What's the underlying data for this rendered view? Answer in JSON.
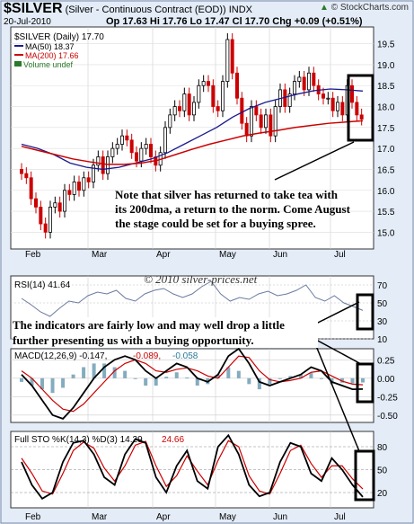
{
  "header": {
    "symbol": "$SILVER",
    "description": "(Silver - Continuous Contract (EOD))",
    "exchange": "INDX",
    "date": "20-Jul-2010",
    "ohlc": "Op 17.63  Hi 17.76  Lo 17.47  Cl 17.70  Chg +0.09 (+0.51%)",
    "watermark": "© StockCharts.com",
    "chg_up_glyph": "▲"
  },
  "legend": {
    "price": "$SILVER (Daily) 17.70",
    "ma50": "MA(50) 18.37",
    "ma200": "MA(200) 17.66",
    "volume": "Volume undef"
  },
  "annotations": {
    "price_note": "Note that silver has returned to take tea with its 200dma, a return to the norm. Come August the stage could be set for a buying spree.",
    "indicator_note": "The indicators are fairly low and may well drop a little further presenting us with a buying opportunity.",
    "copyright": "© 2010 silver-prices.net"
  },
  "panels": {
    "rsi_label": "RSI(14) 41.64",
    "macd_label_a": "MACD(12,26,9) -0.147,",
    "macd_label_b": "-0.089,",
    "macd_label_c": "-0.058",
    "sto_label_a": "Full STO %K(14,3) %D(3) 14.29,",
    "sto_label_b": "24.66"
  },
  "colors": {
    "background": "#e3ecf7",
    "plot": "#ffffff",
    "up_candle": "#000000",
    "down_candle": "#cc0000",
    "ma50": "#1a1a8c",
    "ma200": "#cc0000",
    "rsi_line": "#6a7aa0",
    "histogram": "#6e9eb4"
  },
  "chart_data": [
    {
      "type": "candlestick",
      "title": "$SILVER (Daily)",
      "x_ticks": [
        "Feb",
        "Mar",
        "Apr",
        "May",
        "Jun",
        "Jul"
      ],
      "y_ticks": [
        15.0,
        15.5,
        16.0,
        16.5,
        17.0,
        17.5,
        18.0,
        18.5,
        19.0,
        19.5
      ],
      "ylim": [
        14.6,
        19.9
      ],
      "series": [
        {
          "name": "$SILVER (Daily)",
          "close": [
            16.4,
            16.3,
            15.8,
            15.6,
            15.2,
            15.0,
            15.6,
            15.7,
            15.5,
            16.0,
            15.9,
            16.2,
            16.0,
            16.3,
            16.2,
            16.6,
            16.8,
            16.4,
            16.8,
            17.0,
            17.1,
            17.3,
            17.2,
            16.9,
            16.7,
            17.0,
            17.1,
            16.8,
            16.6,
            16.9,
            17.5,
            17.8,
            18.0,
            17.9,
            18.3,
            17.8,
            18.1,
            18.5,
            18.6,
            18.5,
            18.0,
            17.9,
            18.6,
            19.6,
            18.8,
            18.2,
            17.6,
            17.3,
            18.0,
            17.8,
            17.5,
            17.8,
            17.3,
            18.0,
            18.4,
            18.0,
            18.3,
            18.6,
            18.7,
            18.4,
            18.8,
            18.5,
            18.3,
            18.2,
            18.2,
            17.9,
            18.1,
            17.8,
            18.5,
            18.1,
            17.8,
            17.7
          ]
        },
        {
          "name": "MA(50)",
          "values": [
            17.1,
            17.0,
            16.85,
            16.65,
            16.55,
            16.5,
            16.55,
            16.65,
            16.75,
            16.9,
            17.1,
            17.3,
            17.5,
            17.75,
            17.95,
            18.1,
            18.2,
            18.3,
            18.38,
            18.42,
            18.4,
            18.37
          ]
        },
        {
          "name": "MA(200)",
          "values": [
            17.05,
            16.95,
            16.85,
            16.75,
            16.68,
            16.62,
            16.62,
            16.65,
            16.72,
            16.85,
            16.98,
            17.1,
            17.2,
            17.3,
            17.37,
            17.43,
            17.5,
            17.55,
            17.6,
            17.63,
            17.66
          ]
        }
      ]
    },
    {
      "type": "line",
      "title": "RSI(14)",
      "y_ticks": [
        10,
        30,
        50,
        70
      ],
      "ylim": [
        10,
        80
      ],
      "series": [
        {
          "name": "RSI(14)",
          "values": [
            55,
            48,
            40,
            35,
            44,
            52,
            50,
            58,
            62,
            60,
            64,
            55,
            52,
            60,
            64,
            66,
            60,
            56,
            60,
            68,
            74,
            60,
            52,
            56,
            54,
            60,
            63,
            58,
            60,
            64,
            70,
            56,
            52,
            58,
            50,
            46,
            41.64
          ]
        }
      ]
    },
    {
      "type": "line",
      "title": "MACD(12,26,9)",
      "y_ticks": [
        -0.5,
        -0.25,
        0.0,
        0.25
      ],
      "ylim": [
        -0.6,
        0.4
      ],
      "series": [
        {
          "name": "MACD",
          "values": [
            0.05,
            -0.1,
            -0.3,
            -0.5,
            -0.55,
            -0.4,
            -0.2,
            0.0,
            0.15,
            0.25,
            0.3,
            0.25,
            0.1,
            0.0,
            0.1,
            0.2,
            0.15,
            0.0,
            -0.05,
            0.05,
            0.3,
            0.4,
            0.2,
            -0.05,
            -0.1,
            -0.05,
            0.0,
            0.05,
            0.15,
            0.1,
            -0.05,
            -0.1,
            -0.15,
            -0.147
          ]
        },
        {
          "name": "Signal",
          "values": [
            0.1,
            0.0,
            -0.15,
            -0.3,
            -0.42,
            -0.45,
            -0.35,
            -0.2,
            -0.05,
            0.1,
            0.2,
            0.25,
            0.2,
            0.1,
            0.08,
            0.12,
            0.14,
            0.1,
            0.03,
            0.0,
            0.15,
            0.3,
            0.28,
            0.1,
            -0.02,
            -0.05,
            -0.03,
            0.0,
            0.08,
            0.1,
            0.03,
            -0.04,
            -0.08,
            -0.089
          ]
        }
      ]
    },
    {
      "type": "line",
      "title": "Full STO %K(14,3) %D(3)",
      "y_ticks": [
        20,
        50,
        80
      ],
      "ylim": [
        0,
        100
      ],
      "series": [
        {
          "name": "%K",
          "values": [
            60,
            30,
            12,
            20,
            60,
            85,
            88,
            70,
            40,
            30,
            70,
            90,
            85,
            40,
            20,
            55,
            75,
            35,
            25,
            80,
            95,
            70,
            30,
            15,
            20,
            60,
            85,
            80,
            45,
            35,
            65,
            50,
            30,
            14.29
          ]
        },
        {
          "name": "%D",
          "values": [
            65,
            45,
            22,
            18,
            45,
            75,
            86,
            78,
            52,
            35,
            55,
            82,
            87,
            55,
            28,
            42,
            68,
            48,
            30,
            62,
            88,
            80,
            42,
            22,
            18,
            45,
            75,
            82,
            58,
            40,
            55,
            55,
            38,
            24.66
          ]
        }
      ]
    }
  ]
}
